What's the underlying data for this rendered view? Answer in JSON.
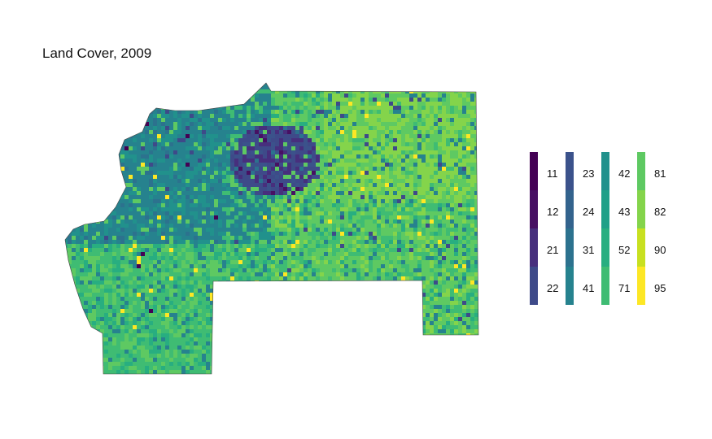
{
  "title": "Land Cover, 2009",
  "legend": {
    "columns": [
      [
        {
          "code": "11",
          "color": "#440154"
        },
        {
          "code": "12",
          "color": "#471063"
        },
        {
          "code": "21",
          "color": "#472f7d"
        },
        {
          "code": "22",
          "color": "#3e4a89"
        }
      ],
      [
        {
          "code": "23",
          "color": "#3b528b"
        },
        {
          "code": "24",
          "color": "#33638d"
        },
        {
          "code": "31",
          "color": "#2c728e"
        },
        {
          "code": "41",
          "color": "#26828e"
        }
      ],
      [
        {
          "code": "42",
          "color": "#21918c"
        },
        {
          "code": "43",
          "color": "#1fa088"
        },
        {
          "code": "52",
          "color": "#28ae80"
        },
        {
          "code": "71",
          "color": "#3fbc73"
        }
      ],
      [
        {
          "code": "81",
          "color": "#5ec962"
        },
        {
          "code": "82",
          "color": "#84d44b"
        },
        {
          "code": "90",
          "color": "#c8e020"
        },
        {
          "code": "95",
          "color": "#fde725"
        }
      ]
    ]
  }
}
